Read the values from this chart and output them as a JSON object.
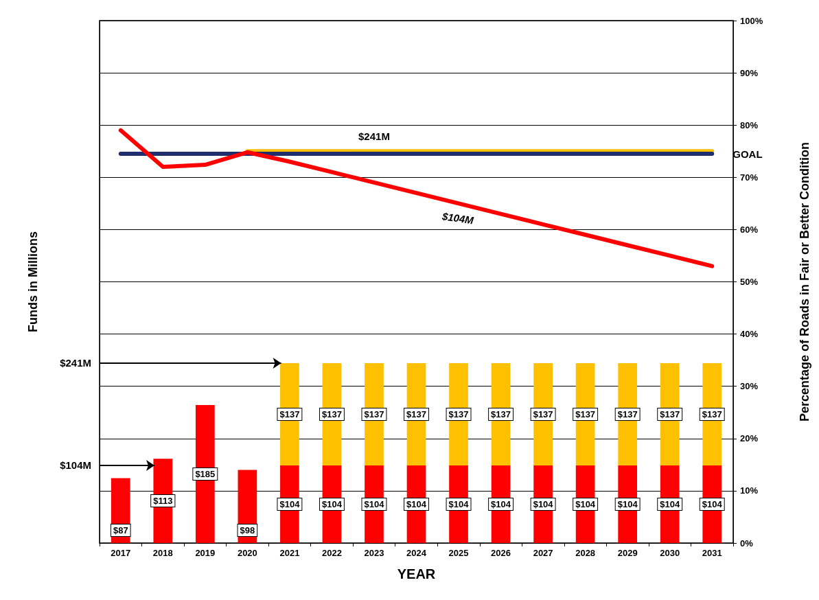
{
  "chart_data": {
    "type": "bar",
    "xlabel": "YEAR",
    "ylabel": "Funds in Millions",
    "y2label": "Percentage of Roads in Fair or Better Condition",
    "categories": [
      "2017",
      "2018",
      "2019",
      "2020",
      "2021",
      "2022",
      "2023",
      "2024",
      "2025",
      "2026",
      "2027",
      "2028",
      "2029",
      "2030",
      "2031"
    ],
    "stacked": true,
    "ylim": [
      0,
      700
    ],
    "yticks": [
      {
        "value": 104,
        "label": "$104M"
      },
      {
        "value": 241,
        "label": "$241M"
      }
    ],
    "grid": "y",
    "legend": false,
    "y2lim": [
      0,
      100
    ],
    "y2ticks": [
      {
        "value": 0,
        "label": "0%"
      },
      {
        "value": 10,
        "label": "10%"
      },
      {
        "value": 20,
        "label": "20%"
      },
      {
        "value": 30,
        "label": "30%"
      },
      {
        "value": 40,
        "label": "40%"
      },
      {
        "value": 50,
        "label": "50%"
      },
      {
        "value": 60,
        "label": "60%"
      },
      {
        "value": 70,
        "label": "70%"
      },
      {
        "value": 80,
        "label": "80%"
      },
      {
        "value": 90,
        "label": "90%"
      },
      {
        "value": 100,
        "label": "100%"
      }
    ],
    "series": [
      {
        "color": "#ff0000",
        "values": [
          87,
          113,
          185,
          98,
          104,
          104,
          104,
          104,
          104,
          104,
          104,
          104,
          104,
          104,
          104
        ],
        "value_labels": [
          "$87",
          "$113",
          "$185",
          "$98",
          "$104",
          "$104",
          "$104",
          "$104",
          "$104",
          "$104",
          "$104",
          "$104",
          "$104",
          "$104",
          "$104"
        ]
      },
      {
        "color": "#ffc000",
        "values": [
          null,
          null,
          null,
          null,
          137,
          137,
          137,
          137,
          137,
          137,
          137,
          137,
          137,
          137,
          137
        ],
        "value_labels": [
          null,
          null,
          null,
          null,
          "$137",
          "$137",
          "$137",
          "$137",
          "$137",
          "$137",
          "$137",
          "$137",
          "$137",
          "$137",
          "$137"
        ]
      },
      {
        "type": "line",
        "axis": "y2",
        "name": "$241M",
        "color": "#ffc000",
        "values": [
          null,
          null,
          null,
          75,
          75,
          75,
          75,
          75,
          75,
          75,
          75,
          75,
          75,
          75,
          75
        ]
      },
      {
        "type": "line",
        "axis": "y2",
        "name": "GOAL",
        "color": "#1f2f6e",
        "values": [
          74.5,
          74.5,
          74.5,
          74.5,
          74.5,
          74.5,
          74.5,
          74.5,
          74.5,
          74.5,
          74.5,
          74.5,
          74.5,
          74.5,
          74.5
        ]
      },
      {
        "type": "line",
        "axis": "y2",
        "name": "$104M",
        "color": "#ff0000",
        "values": [
          79,
          72,
          72.4,
          74.8,
          73,
          71,
          69,
          67,
          65,
          63,
          61,
          59,
          57,
          55,
          53
        ]
      }
    ]
  }
}
